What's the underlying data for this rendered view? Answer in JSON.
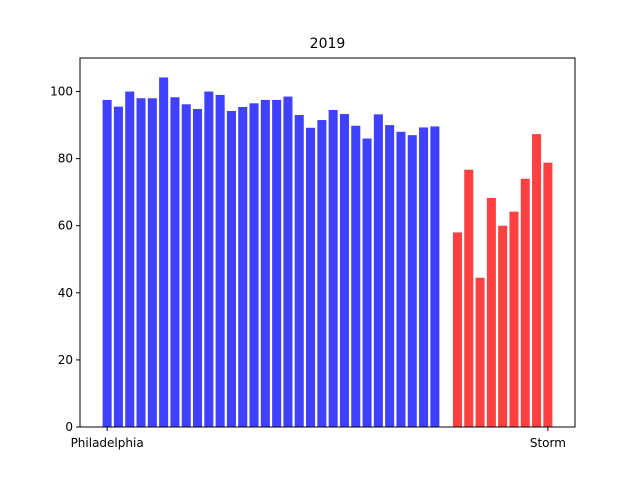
{
  "chart_data": {
    "type": "bar",
    "title": "2019",
    "categories": [
      "Philadelphia",
      null,
      null,
      null,
      null,
      null,
      null,
      null,
      null,
      null,
      null,
      null,
      null,
      null,
      null,
      null,
      null,
      null,
      null,
      null,
      null,
      null,
      null,
      null,
      null,
      null,
      null,
      null,
      null,
      null,
      null,
      null,
      null,
      null,
      null,
      null,
      null,
      null,
      null,
      "Storm"
    ],
    "values": [
      97.5,
      95.5,
      100,
      98,
      98,
      104.2,
      98.3,
      96.2,
      94.8,
      100,
      99,
      94.2,
      95.4,
      96.5,
      97.5,
      97.5,
      98.5,
      93,
      89.2,
      91.5,
      94.5,
      93.3,
      89.8,
      86,
      93.2,
      90,
      88,
      87,
      89.3,
      89.6,
      null,
      58,
      76.7,
      44.5,
      68.3,
      60,
      64.2,
      74,
      87.3,
      78.8
    ],
    "colors": [
      "#4040ff",
      "#4040ff",
      "#4040ff",
      "#4040ff",
      "#4040ff",
      "#4040ff",
      "#4040ff",
      "#4040ff",
      "#4040ff",
      "#4040ff",
      "#4040ff",
      "#4040ff",
      "#4040ff",
      "#4040ff",
      "#4040ff",
      "#4040ff",
      "#4040ff",
      "#4040ff",
      "#4040ff",
      "#4040ff",
      "#4040ff",
      "#4040ff",
      "#4040ff",
      "#4040ff",
      "#4040ff",
      "#4040ff",
      "#4040ff",
      "#4040ff",
      "#4040ff",
      "#4040ff",
      null,
      "#ff4040",
      "#ff4040",
      "#ff4040",
      "#ff4040",
      "#ff4040",
      "#ff4040",
      "#ff4040",
      "#ff4040",
      "#ff4040"
    ],
    "ylim": [
      0,
      110
    ],
    "yticks": [
      0,
      20,
      40,
      60,
      80,
      100
    ],
    "grid": false
  }
}
